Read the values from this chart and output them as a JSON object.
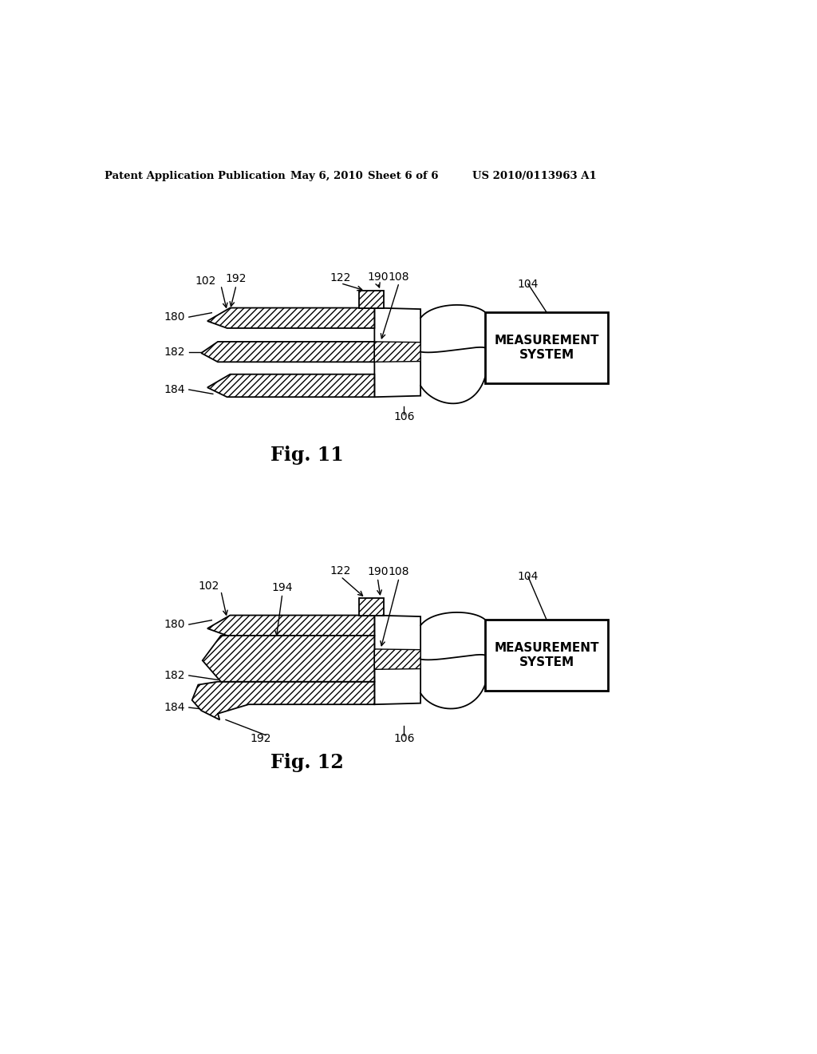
{
  "bg_color": "#ffffff",
  "header_text1": "Patent Application Publication",
  "header_text2": "May 6, 2010",
  "header_text3": "Sheet 6 of 6",
  "header_text4": "US 2010/0113963 A1",
  "fig11_caption": "Fig. 11",
  "fig12_caption": "Fig. 12",
  "measurement_system_text": "MEASUREMENT\nSYSTEM",
  "line_color": "#000000"
}
